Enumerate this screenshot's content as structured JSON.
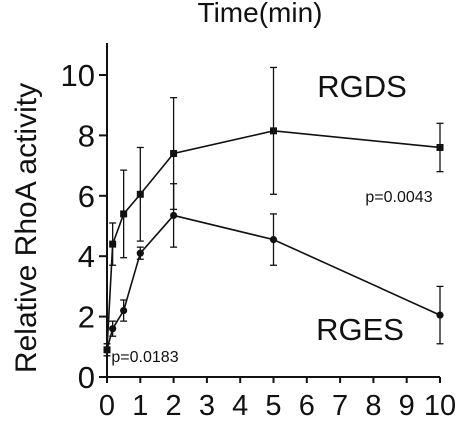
{
  "chart_data": {
    "type": "line",
    "title": "Time(min)",
    "xlabel": "",
    "ylabel": "Relative RhoA activity",
    "xlim": [
      0,
      10
    ],
    "ylim": [
      0,
      10
    ],
    "x_ticks": [
      0,
      1,
      2,
      3,
      4,
      5,
      6,
      7,
      8,
      9,
      10
    ],
    "x_tick_labels": [
      "0",
      "1",
      "2",
      "3",
      "4",
      "5",
      "6",
      "7",
      "8",
      "9",
      "10"
    ],
    "y_ticks": [
      0,
      2,
      4,
      6,
      8,
      10
    ],
    "y_tick_labels": [
      "0",
      "2",
      "4",
      "6",
      "8",
      "10"
    ],
    "grid": false,
    "legend": "none (series labelled directly)",
    "series": [
      {
        "name": "RGDS",
        "marker": "square",
        "color": "#111111",
        "x": [
          0,
          0.17,
          0.5,
          1,
          2,
          5,
          10
        ],
        "y": [
          0.9,
          4.4,
          5.4,
          6.05,
          7.4,
          8.15,
          7.6
        ],
        "error": [
          0.2,
          0.7,
          1.45,
          1.55,
          1.85,
          2.1,
          0.8
        ]
      },
      {
        "name": "RGES",
        "marker": "circle",
        "color": "#111111",
        "x": [
          0,
          0.17,
          0.5,
          1,
          2,
          5,
          10
        ],
        "y": [
          0.9,
          1.6,
          2.2,
          4.1,
          5.35,
          4.55,
          2.05
        ],
        "error": [
          0.2,
          0.25,
          0.35,
          0.2,
          1.05,
          0.85,
          0.95
        ]
      }
    ],
    "annotations": [
      {
        "id": "p-rgds",
        "text": "p=0.0043"
      },
      {
        "id": "p-rges",
        "text": "p=0.0183"
      }
    ]
  }
}
